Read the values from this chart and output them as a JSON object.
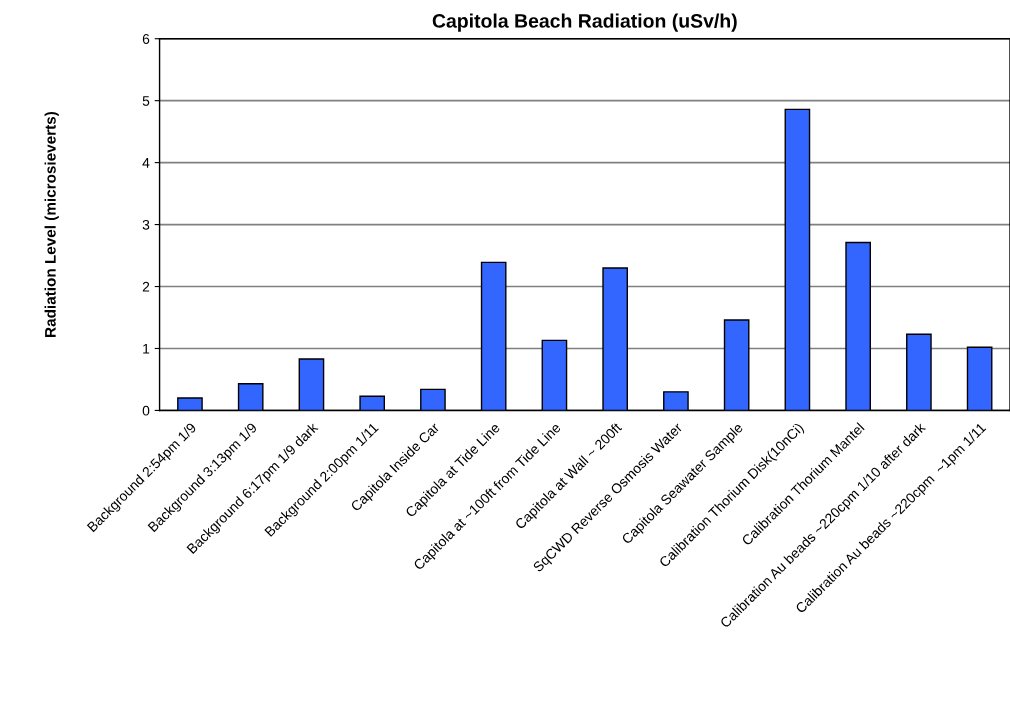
{
  "chart_data": {
    "type": "bar",
    "title": "Capitola Beach Radiation (uSv/h)",
    "ylabel": "Radiation Level (microsieverts)",
    "categories": [
      "Background 2:54pm 1/9",
      "Background 3:13pm 1/9",
      "Background 6:17pm 1/9 dark",
      "Background 2:00pm 1/11",
      "Capitola Inside Car",
      "Capitola at Tide Line",
      "Capitola at ~100ft from Tide Line",
      "Capitola at Wall ~ 200ft",
      "SqCWD Reverse Osmosis Water",
      "Capitola Seawater Sample",
      "Calibration Thorium Disk(10nCi)",
      "Calibration Thorium Mantel",
      "Calibration Au beads ~220cpm 1/10 after dark",
      "Calibration Au beads ~220cpm  ~1pm 1/11"
    ],
    "values": [
      0.2,
      0.43,
      0.83,
      0.23,
      0.34,
      2.39,
      1.13,
      2.3,
      0.3,
      1.46,
      4.86,
      2.71,
      1.23,
      1.02
    ],
    "color": "#3366ff",
    "ylim": [
      0,
      6
    ],
    "yticks": [
      0,
      1,
      2,
      3,
      4,
      5,
      6
    ],
    "grid": "y"
  }
}
